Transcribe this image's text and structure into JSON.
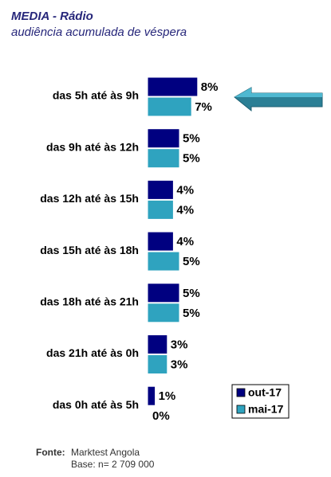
{
  "chart_data": {
    "type": "bar",
    "orientation": "horizontal",
    "title": "MEDIA - Rádio",
    "subtitle": "audiência acumulada de véspera",
    "categories": [
      "das 5h até às 9h",
      "das 9h até às 12h",
      "das 12h até às 15h",
      "das 15h até às 18h",
      "das 18h até às 21h",
      "das 21h até às 0h",
      "das 0h até às 5h"
    ],
    "series": [
      {
        "name": "out-17",
        "color": "#000080",
        "values": [
          8,
          5,
          4,
          4,
          5,
          3,
          1
        ],
        "value_labels": [
          "8%",
          "5%",
          "4%",
          "4%",
          "5%",
          "3%",
          "1%"
        ]
      },
      {
        "name": "mai-17",
        "color": "#2fa3bf",
        "values": [
          7,
          5,
          4,
          5,
          5,
          3,
          0
        ],
        "value_labels": [
          "7%",
          "5%",
          "4%",
          "5%",
          "5%",
          "3%",
          "0%"
        ]
      }
    ],
    "legend": "bottom-right",
    "source_label": "Fonte:",
    "source": "Marktest Angola",
    "base": "Base: n= 2 709 000"
  }
}
